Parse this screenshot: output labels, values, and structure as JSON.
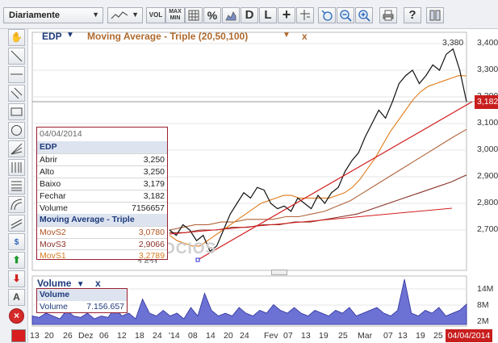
{
  "toolbar": {
    "period": "Diariamente",
    "vol_label": "VOL",
    "maxmin_label_top": "MAX",
    "maxmin_label_bottom": "MIN",
    "percent_label": "%",
    "d_label": "D",
    "l_label": "L",
    "help_label": "?"
  },
  "chart": {
    "symbol": "EDP",
    "indicator_title": "Moving Average - Triple (20,50,100)",
    "indicator_close": "x",
    "peak_label": "3,380",
    "last_price": "3,182",
    "y_ticks": [
      "3,400",
      "3,300",
      "3,200",
      "3,100",
      "3,000",
      "2,900",
      "2,800",
      "2,700"
    ],
    "watermark": "OCIOS"
  },
  "info_box": {
    "date": "04/04/2014",
    "symbol": "EDP",
    "rows": [
      {
        "label": "Abrir",
        "value": "3,250"
      },
      {
        "label": "Alto",
        "value": "3,250"
      },
      {
        "label": "Baixo",
        "value": "3,179"
      },
      {
        "label": "Fechar",
        "value": "3,182"
      },
      {
        "label": "Volume",
        "value": "7156657"
      }
    ],
    "ma_title": "Moving Average - Triple",
    "ma_rows": [
      {
        "label": "MovS2",
        "value": "3,0780"
      },
      {
        "label": "MovS3",
        "value": "2,9066"
      },
      {
        "label": "MovS1",
        "value": "3,2789"
      }
    ],
    "hidden_value": "2,621"
  },
  "volume": {
    "title": "Volume",
    "close": "x",
    "box_title": "Volume",
    "box_label": "Volume",
    "box_value": "7.156.657",
    "ticks": [
      "14M",
      "8M",
      "2M"
    ]
  },
  "x_axis": {
    "labels": [
      "13",
      "20",
      "26",
      "Dez",
      "06",
      "12",
      "18",
      "24",
      "'14",
      "08",
      "14",
      "20",
      "24",
      "Fev",
      "07",
      "13",
      "19",
      "25",
      "Mar",
      "07",
      "13",
      "19",
      "25"
    ],
    "selected_date": "04/04/2014"
  },
  "chart_data": {
    "type": "line",
    "title": "Moving Average - Triple (20,50,100)",
    "xlabel": "",
    "ylabel": "",
    "ylim": [
      2.6,
      3.42
    ],
    "series": [
      {
        "name": "EDP",
        "values": [
          2.7,
          2.68,
          2.72,
          2.7,
          2.66,
          2.68,
          2.62,
          2.64,
          2.7,
          2.76,
          2.8,
          2.84,
          2.82,
          2.86,
          2.85,
          2.8,
          2.78,
          2.79,
          2.77,
          2.82,
          2.8,
          2.78,
          2.83,
          2.8,
          2.84,
          2.86,
          2.92,
          2.96,
          2.99,
          3.05,
          3.1,
          3.15,
          3.12,
          3.18,
          3.25,
          3.28,
          3.3,
          3.25,
          3.28,
          3.32,
          3.3,
          3.36,
          3.38,
          3.3,
          3.182
        ]
      },
      {
        "name": "MovS1",
        "values": [
          2.68,
          2.66,
          2.65,
          2.64,
          2.64,
          2.66,
          2.68,
          2.7,
          2.72,
          2.74,
          2.76,
          2.78,
          2.8,
          2.81,
          2.82,
          2.83,
          2.83,
          2.82,
          2.82,
          2.82,
          2.82,
          2.82,
          2.83,
          2.84,
          2.86,
          2.89,
          2.93,
          2.97,
          3.02,
          3.07,
          3.11,
          3.15,
          3.19,
          3.22,
          3.24,
          3.25,
          3.26,
          3.27,
          3.28,
          3.2789
        ]
      },
      {
        "name": "MovS2",
        "values": [
          2.7,
          2.71,
          2.72,
          2.72,
          2.73,
          2.73,
          2.74,
          2.74,
          2.74,
          2.75,
          2.75,
          2.76,
          2.77,
          2.79,
          2.81,
          2.84,
          2.87,
          2.9,
          2.93,
          2.96,
          2.99,
          3.02,
          3.05,
          3.078
        ]
      },
      {
        "name": "MovS3",
        "values": [
          2.69,
          2.69,
          2.7,
          2.7,
          2.71,
          2.71,
          2.72,
          2.72,
          2.73,
          2.73,
          2.74,
          2.75,
          2.76,
          2.78,
          2.8,
          2.82,
          2.84,
          2.86,
          2.88,
          2.9066
        ]
      }
    ],
    "volume_series": {
      "name": "Volume",
      "ylim": [
        0,
        16
      ],
      "values": [
        3,
        2.5,
        4,
        3,
        2,
        5,
        3,
        2.5,
        4,
        2,
        3,
        2.5,
        6,
        3,
        4,
        2,
        9,
        4,
        3,
        5,
        3,
        4,
        2,
        6,
        3,
        11,
        5,
        3,
        4,
        3,
        6,
        4,
        3,
        5,
        4,
        7,
        5,
        4,
        6,
        4,
        3,
        5,
        4,
        3,
        5,
        4,
        6,
        3,
        4,
        5,
        6,
        4,
        3,
        5,
        16,
        4,
        3,
        5,
        4,
        6,
        3,
        4,
        5,
        7.16
      ]
    }
  }
}
